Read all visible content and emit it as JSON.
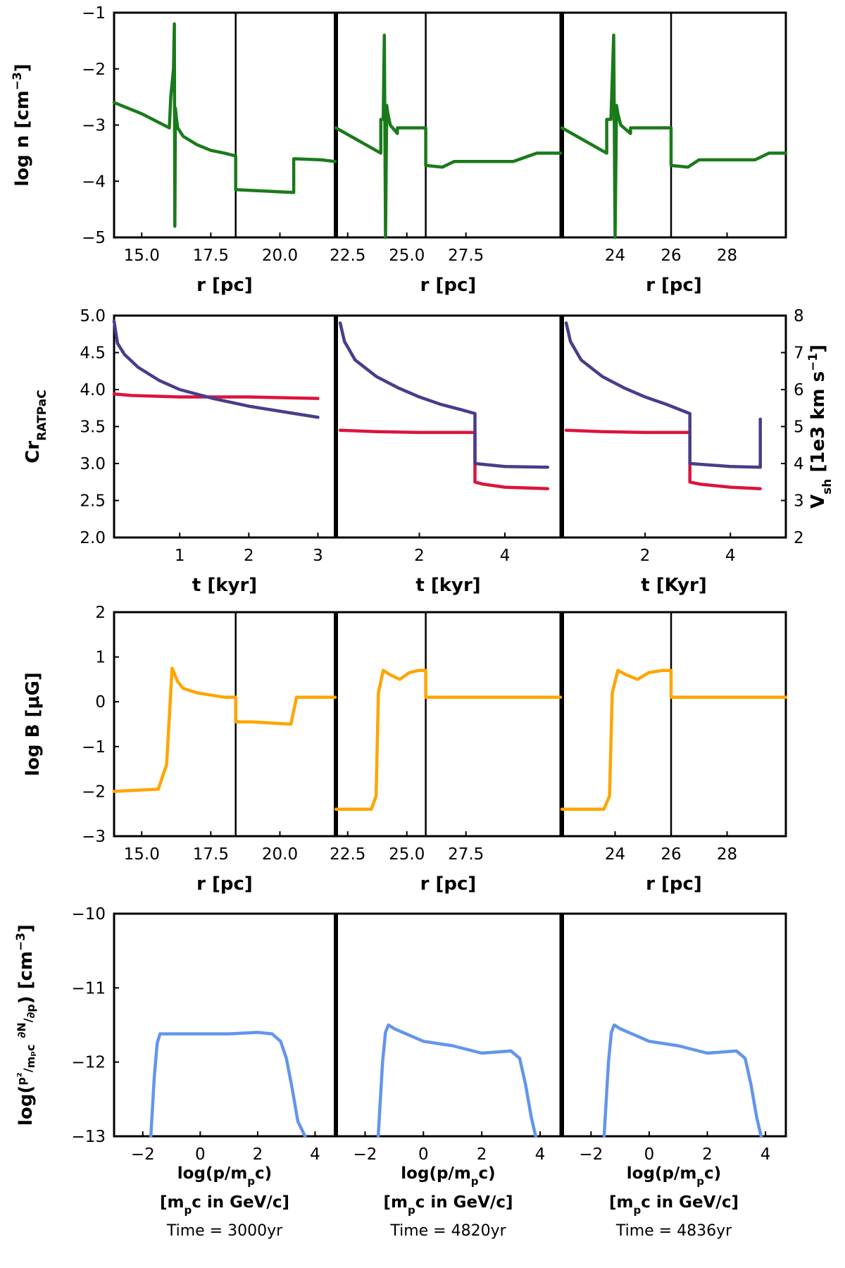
{
  "colors": {
    "density": "#1a7a1a",
    "cr": "#dc143c",
    "vsh": "#483d8b",
    "bfield": "#ffa500",
    "spectrum": "#6495ed",
    "text_cr": "#dc143c",
    "text_vsh": "#483d8b"
  },
  "captions": [
    "Time = 3000yr",
    "Time = 4820yr",
    "Time = 4836yr"
  ],
  "chart_data": [
    {
      "type": "line",
      "row": "density",
      "ylabel_main": "log n [cm",
      "ylabel_sup": "−3",
      "ylabel_end": "]",
      "ylim": [
        -5,
        -1
      ],
      "yticks": [
        -1,
        -2,
        -3,
        -4,
        -5
      ],
      "yticks_labels": [
        "−1",
        "−2",
        "−3",
        "−4",
        "−5"
      ],
      "panels": [
        {
          "xlabel": "r [pc]",
          "xlim": [
            14.0,
            22.0
          ],
          "xticks": [
            15.0,
            17.5,
            20.0
          ],
          "xticks_labels": [
            "15.0",
            "17.5",
            "20.0"
          ],
          "divider": 18.4,
          "x": [
            14.0,
            15.0,
            16.0,
            16.05,
            16.15,
            16.18,
            16.2,
            16.22,
            16.25,
            16.3,
            16.5,
            17.0,
            17.5,
            18.0,
            18.4,
            18.4,
            20.5,
            20.5,
            21.5,
            22.0
          ],
          "y": [
            -2.6,
            -2.8,
            -3.05,
            -2.5,
            -2.0,
            -1.2,
            -4.8,
            -2.7,
            -2.85,
            -3.05,
            -3.2,
            -3.35,
            -3.45,
            -3.5,
            -3.55,
            -4.15,
            -4.2,
            -3.6,
            -3.62,
            -3.65
          ]
        },
        {
          "xlabel": "r [pc]",
          "xlim": [
            22.0,
            31.5
          ],
          "xticks": [
            22.5,
            25.0,
            27.5
          ],
          "xticks_labels": [
            "22.5",
            "25.0",
            "27.5"
          ],
          "divider": 25.8,
          "x": [
            22.0,
            23.9,
            23.9,
            24.0,
            24.05,
            24.1,
            24.15,
            24.2,
            24.3,
            24.6,
            24.6,
            25.8,
            25.8,
            26.5,
            27.0,
            28.0,
            29.5,
            30.5,
            31.5
          ],
          "y": [
            -3.05,
            -3.5,
            -2.9,
            -2.9,
            -1.4,
            -5.0,
            -2.65,
            -2.8,
            -3.0,
            -3.15,
            -3.05,
            -3.05,
            -3.72,
            -3.75,
            -3.65,
            -3.65,
            -3.65,
            -3.5,
            -3.5
          ]
        },
        {
          "xlabel": "r [pc]",
          "xlim": [
            22.1,
            30.1
          ],
          "xticks": [
            24,
            26,
            28
          ],
          "xticks_labels": [
            "24",
            "26",
            "28"
          ],
          "divider": 26.0,
          "x": [
            22.1,
            23.7,
            23.7,
            23.85,
            23.95,
            24.0,
            24.05,
            24.1,
            24.2,
            24.55,
            24.55,
            26.0,
            26.0,
            26.6,
            27.0,
            27.5,
            29.0,
            29.5,
            30.1
          ],
          "y": [
            -3.05,
            -3.5,
            -2.9,
            -2.9,
            -1.4,
            -5.0,
            -2.65,
            -2.8,
            -3.0,
            -3.15,
            -3.05,
            -3.05,
            -3.72,
            -3.75,
            -3.62,
            -3.62,
            -3.62,
            -3.5,
            -3.5
          ]
        }
      ]
    },
    {
      "type": "line",
      "row": "compression-shockspeed",
      "ylabel_left_main": "Cr",
      "ylabel_left_sub": "RATPaC",
      "ylabel_right_main": "V",
      "ylabel_right_sub": "sh",
      "ylabel_right_rest": " [1e3 km s",
      "ylabel_right_sup": "−1",
      "ylabel_right_end": "]",
      "ylim_left": [
        2.0,
        5.0
      ],
      "yticks_left": [
        2.0,
        2.5,
        3.0,
        3.5,
        4.0,
        4.5,
        5.0
      ],
      "yticks_left_labels": [
        "2.0",
        "2.5",
        "3.0",
        "3.5",
        "4.0",
        "4.5",
        "5.0"
      ],
      "ylim_right": [
        2,
        8
      ],
      "yticks_right": [
        2,
        3,
        4,
        5,
        6,
        7,
        8
      ],
      "yticks_right_labels": [
        "2",
        "3",
        "4",
        "5",
        "6",
        "7",
        "8"
      ],
      "panels": [
        {
          "xlabel": "t [kyr]",
          "xlim": [
            0.05,
            3.25
          ],
          "xticks": [
            1,
            2,
            3
          ],
          "xticks_labels": [
            "1",
            "2",
            "3"
          ],
          "cr_x": [
            0.05,
            0.3,
            1.0,
            2.0,
            3.0
          ],
          "cr_y": [
            3.94,
            3.92,
            3.9,
            3.9,
            3.88
          ],
          "vsh_x": [
            0.05,
            0.1,
            0.2,
            0.4,
            0.7,
            1.0,
            1.5,
            2.0,
            2.5,
            3.0
          ],
          "vsh_y": [
            7.85,
            7.25,
            6.95,
            6.6,
            6.25,
            6.0,
            5.75,
            5.55,
            5.4,
            5.25
          ]
        },
        {
          "xlabel": "t [kyr]",
          "xlim": [
            0.05,
            5.3
          ],
          "xticks": [
            2,
            4
          ],
          "xticks_labels": [
            "2",
            "4"
          ],
          "cr_x": [
            0.15,
            1.0,
            2.0,
            3.3,
            3.3,
            3.5,
            4.0,
            5.0
          ],
          "cr_y": [
            3.45,
            3.43,
            3.42,
            3.42,
            2.75,
            2.72,
            2.68,
            2.66
          ],
          "vsh_x": [
            0.15,
            0.25,
            0.5,
            1.0,
            1.5,
            2.0,
            2.5,
            3.0,
            3.3,
            3.3,
            4.0,
            5.0
          ],
          "vsh_y": [
            7.8,
            7.3,
            6.8,
            6.35,
            6.05,
            5.8,
            5.6,
            5.45,
            5.35,
            4.0,
            3.92,
            3.9
          ]
        },
        {
          "xlabel": "t [Kyr]",
          "xlim": [
            0.05,
            5.3
          ],
          "xticks": [
            2,
            4
          ],
          "xticks_labels": [
            "2",
            "4"
          ],
          "cr_x": [
            0.15,
            1.0,
            2.0,
            3.05,
            3.05,
            3.3,
            4.0,
            4.7
          ],
          "cr_y": [
            3.45,
            3.43,
            3.42,
            3.42,
            2.75,
            2.72,
            2.68,
            2.66
          ],
          "vsh_x": [
            0.15,
            0.25,
            0.5,
            1.0,
            1.5,
            2.0,
            2.5,
            3.05,
            3.05,
            4.0,
            4.7,
            4.7
          ],
          "vsh_y": [
            7.8,
            7.3,
            6.8,
            6.35,
            6.05,
            5.8,
            5.6,
            5.35,
            4.0,
            3.92,
            3.9,
            5.2
          ]
        }
      ]
    },
    {
      "type": "line",
      "row": "magnetic-field",
      "ylabel_main": "log B [μG]",
      "ylim": [
        -3,
        2
      ],
      "yticks": [
        2,
        1,
        0,
        -1,
        -2,
        -3
      ],
      "yticks_labels": [
        "2",
        "1",
        "0",
        "−1",
        "−2",
        "−3"
      ],
      "panels": [
        {
          "xlabel": "r [pc]",
          "xlim": [
            14.0,
            22.0
          ],
          "xticks": [
            15.0,
            17.5,
            20.0
          ],
          "xticks_labels": [
            "15.0",
            "17.5",
            "20.0"
          ],
          "divider": 18.4,
          "x": [
            14.0,
            15.6,
            15.9,
            16.1,
            16.3,
            16.5,
            17.0,
            17.5,
            18.0,
            18.4,
            18.4,
            19.0,
            20.4,
            20.6,
            21.0,
            22.0
          ],
          "y": [
            -2.0,
            -1.95,
            -1.4,
            0.75,
            0.45,
            0.3,
            0.2,
            0.15,
            0.1,
            0.1,
            -0.45,
            -0.45,
            -0.5,
            0.1,
            0.1,
            0.1
          ]
        },
        {
          "xlabel": "r [pc]",
          "xlim": [
            22.0,
            31.5
          ],
          "xticks": [
            22.5,
            25.0,
            27.5
          ],
          "xticks_labels": [
            "22.5",
            "25.0",
            "27.5"
          ],
          "divider": 25.8,
          "x": [
            22.0,
            23.5,
            23.7,
            23.8,
            24.0,
            24.3,
            24.7,
            25.1,
            25.5,
            25.8,
            25.8,
            27.0,
            31.5
          ],
          "y": [
            -2.4,
            -2.4,
            -2.1,
            0.2,
            0.7,
            0.6,
            0.5,
            0.65,
            0.7,
            0.7,
            0.1,
            0.1,
            0.1
          ]
        },
        {
          "xlabel": "r [pc]",
          "xlim": [
            22.1,
            30.1
          ],
          "xticks": [
            24,
            26,
            28
          ],
          "xticks_labels": [
            "24",
            "26",
            "28"
          ],
          "divider": 26.0,
          "x": [
            22.1,
            23.6,
            23.8,
            23.9,
            24.1,
            24.4,
            24.8,
            25.2,
            25.7,
            26.0,
            26.0,
            27.0,
            30.1
          ],
          "y": [
            -2.4,
            -2.4,
            -2.1,
            0.2,
            0.7,
            0.6,
            0.5,
            0.65,
            0.7,
            0.7,
            0.1,
            0.1,
            0.1
          ]
        }
      ]
    },
    {
      "type": "line",
      "row": "proton-spectrum",
      "ylabel_text": "log(",
      "ylabel_frac_num": "p²",
      "ylabel_frac_den": "mₚc",
      "ylabel_deriv_num": "∂N",
      "ylabel_deriv_den": "∂p",
      "ylabel_unit": ") [cm",
      "ylabel_sup": "−3",
      "ylabel_end": "]",
      "ylim": [
        -13,
        -10
      ],
      "yticks": [
        -10,
        -11,
        -12,
        -13
      ],
      "yticks_labels": [
        "−10",
        "−11",
        "−12",
        "−13"
      ],
      "xlabel_line1_text": "log(p/m",
      "xlabel_line1_sub": "p",
      "xlabel_line1_end": "c)",
      "xlabel_line2_start": "[m",
      "xlabel_line2_sub": "p",
      "xlabel_line2_end": "c in GeV/c]",
      "panels": [
        {
          "xlim": [
            -3,
            4.7
          ],
          "xticks": [
            -2,
            0,
            2,
            4
          ],
          "xticks_labels": [
            "−2",
            "0",
            "2",
            "4"
          ],
          "x": [
            -1.72,
            -1.6,
            -1.5,
            -1.4,
            0.0,
            1.0,
            2.0,
            2.5,
            2.8,
            3.0,
            3.2,
            3.4,
            3.65
          ],
          "y": [
            -13.0,
            -12.2,
            -11.75,
            -11.62,
            -11.62,
            -11.62,
            -11.6,
            -11.62,
            -11.72,
            -11.95,
            -12.35,
            -12.8,
            -13.0
          ]
        },
        {
          "xlim": [
            -3,
            4.7
          ],
          "xticks": [
            -2,
            0,
            2,
            4
          ],
          "xticks_labels": [
            "−2",
            "0",
            "2",
            "4"
          ],
          "x": [
            -1.55,
            -1.4,
            -1.3,
            -1.2,
            -1.0,
            0.0,
            1.0,
            2.0,
            3.0,
            3.3,
            3.5,
            3.7,
            3.85
          ],
          "y": [
            -13.0,
            -12.0,
            -11.6,
            -11.5,
            -11.55,
            -11.72,
            -11.78,
            -11.88,
            -11.85,
            -11.95,
            -12.3,
            -12.75,
            -13.0
          ]
        },
        {
          "xlim": [
            -3,
            4.7
          ],
          "xticks": [
            -2,
            0,
            2,
            4
          ],
          "xticks_labels": [
            "−2",
            "0",
            "2",
            "4"
          ],
          "x": [
            -1.55,
            -1.4,
            -1.3,
            -1.2,
            -1.0,
            0.0,
            1.0,
            2.0,
            3.0,
            3.3,
            3.5,
            3.7,
            3.85
          ],
          "y": [
            -13.0,
            -12.0,
            -11.6,
            -11.5,
            -11.55,
            -11.72,
            -11.78,
            -11.88,
            -11.85,
            -11.95,
            -12.3,
            -12.75,
            -13.0
          ]
        }
      ]
    }
  ]
}
